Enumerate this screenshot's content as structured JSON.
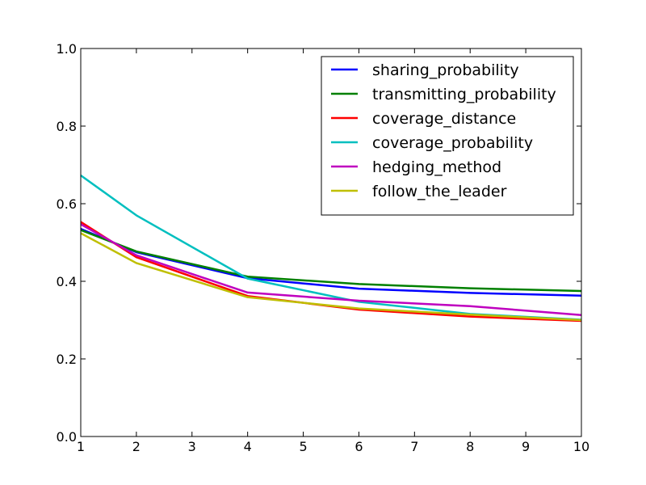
{
  "chart_data": {
    "type": "line",
    "title": "",
    "xlabel": "",
    "ylabel": "",
    "x": [
      1,
      2,
      4,
      6,
      8,
      10
    ],
    "xlim": [
      1,
      10
    ],
    "ylim": [
      0.0,
      1.0
    ],
    "x_ticks": [
      1,
      2,
      3,
      4,
      5,
      6,
      7,
      8,
      9,
      10
    ],
    "x_tick_labels": [
      "1",
      "2",
      "3",
      "4",
      "5",
      "6",
      "7",
      "8",
      "9",
      "10"
    ],
    "y_ticks": [
      0.0,
      0.2,
      0.4,
      0.6,
      0.8,
      1.0
    ],
    "y_tick_labels": [
      "0.0",
      "0.2",
      "0.4",
      "0.6",
      "0.8",
      "1.0"
    ],
    "grid": false,
    "legend_position": "upper right",
    "series": [
      {
        "name": "sharing_probability",
        "color": "#0000ff",
        "values": [
          0.535,
          0.475,
          0.408,
          0.381,
          0.37,
          0.363
        ]
      },
      {
        "name": "transmitting_probability",
        "color": "#008000",
        "values": [
          0.532,
          0.477,
          0.412,
          0.393,
          0.382,
          0.375
        ]
      },
      {
        "name": "coverage_distance",
        "color": "#ff0000",
        "values": [
          0.553,
          0.462,
          0.362,
          0.327,
          0.309,
          0.298
        ]
      },
      {
        "name": "coverage_probability",
        "color": "#00bfbf",
        "values": [
          0.673,
          0.57,
          0.407,
          0.347,
          0.316,
          0.301
        ]
      },
      {
        "name": "hedging_method",
        "color": "#bf00bf",
        "values": [
          0.547,
          0.467,
          0.371,
          0.35,
          0.336,
          0.313
        ]
      },
      {
        "name": "follow_the_leader",
        "color": "#bfbf00",
        "values": [
          0.524,
          0.447,
          0.359,
          0.33,
          0.314,
          0.3
        ]
      }
    ]
  }
}
